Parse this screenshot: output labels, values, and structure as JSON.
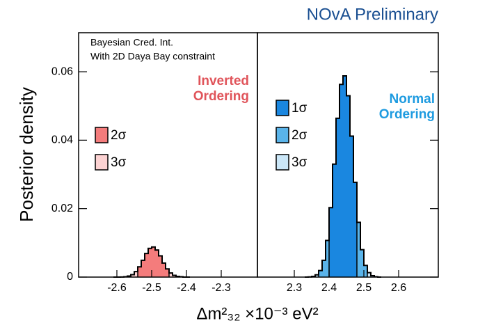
{
  "chart_data": [
    {
      "type": "histogram",
      "title": "NOvA Preliminary",
      "y_label": "Posterior density",
      "x_label": "Δm²₃₂ ×10⁻³ eV²",
      "annotations": [
        "Bayesian Cred. Int.",
        "With 2D Daya Bay constraint"
      ],
      "ordering_label": [
        "Inverted",
        "Ordering"
      ],
      "ordering_color": "#e0545a",
      "bins": [
        -2.61,
        -2.6,
        -2.59,
        -2.58,
        -2.57,
        -2.56,
        -2.55,
        -2.54,
        -2.53,
        -2.52,
        -2.51,
        -2.5,
        -2.49,
        -2.48,
        -2.47,
        -2.46,
        -2.45,
        -2.44,
        -2.43,
        -2.42,
        -2.41,
        -2.4,
        -2.39
      ],
      "values": [
        0,
        0,
        3e-05,
        0.0001,
        0.0003,
        0.0007,
        0.0016,
        0.003,
        0.0049,
        0.0069,
        0.0084,
        0.0088,
        0.0079,
        0.0062,
        0.0041,
        0.0024,
        0.0012,
        0.0005,
        0.0002,
        0.0001,
        0,
        0
      ],
      "intervals": [
        {
          "name": "2σ",
          "color": "#f47c7c",
          "range": [
            -2.54,
            -2.45
          ]
        },
        {
          "name": "3σ",
          "color": "#fcd2d2",
          "range": [
            -2.56,
            -2.43
          ]
        }
      ],
      "xlim": [
        -2.71,
        -2.196
      ],
      "xticks": [
        -2.6,
        -2.5,
        -2.4,
        -2.3
      ],
      "ylim": [
        0,
        0.0714
      ],
      "yticks": [
        0,
        0.02,
        0.04,
        0.06
      ]
    },
    {
      "type": "histogram",
      "ordering_label": [
        "Normal",
        "Ordering"
      ],
      "ordering_color": "#1e9be0",
      "bins": [
        2.33,
        2.34,
        2.35,
        2.36,
        2.37,
        2.38,
        2.39,
        2.4,
        2.41,
        2.42,
        2.43,
        2.44,
        2.45,
        2.46,
        2.47,
        2.48,
        2.49,
        2.5,
        2.51,
        2.52,
        2.53,
        2.54,
        2.55
      ],
      "values": [
        0,
        5e-05,
        0.0002,
        0.00066,
        0.0019,
        0.0049,
        0.0107,
        0.0203,
        0.033,
        0.0464,
        0.0563,
        0.0588,
        0.053,
        0.0412,
        0.0277,
        0.016,
        0.008,
        0.0034,
        0.0013,
        0.0004,
        0.0001,
        0
      ],
      "intervals": [
        {
          "name": "1σ",
          "color": "#1a87e0",
          "range": [
            2.4,
            2.48
          ]
        },
        {
          "name": "2σ",
          "color": "#5ab4ea",
          "range": [
            2.37,
            2.51
          ]
        },
        {
          "name": "3σ",
          "color": "#cbe7f8",
          "range": [
            2.35,
            2.53
          ]
        }
      ],
      "xlim": [
        2.194,
        2.714
      ],
      "xticks": [
        2.3,
        2.4,
        2.5,
        2.6
      ],
      "ylim": [
        0,
        0.0714
      ]
    }
  ]
}
